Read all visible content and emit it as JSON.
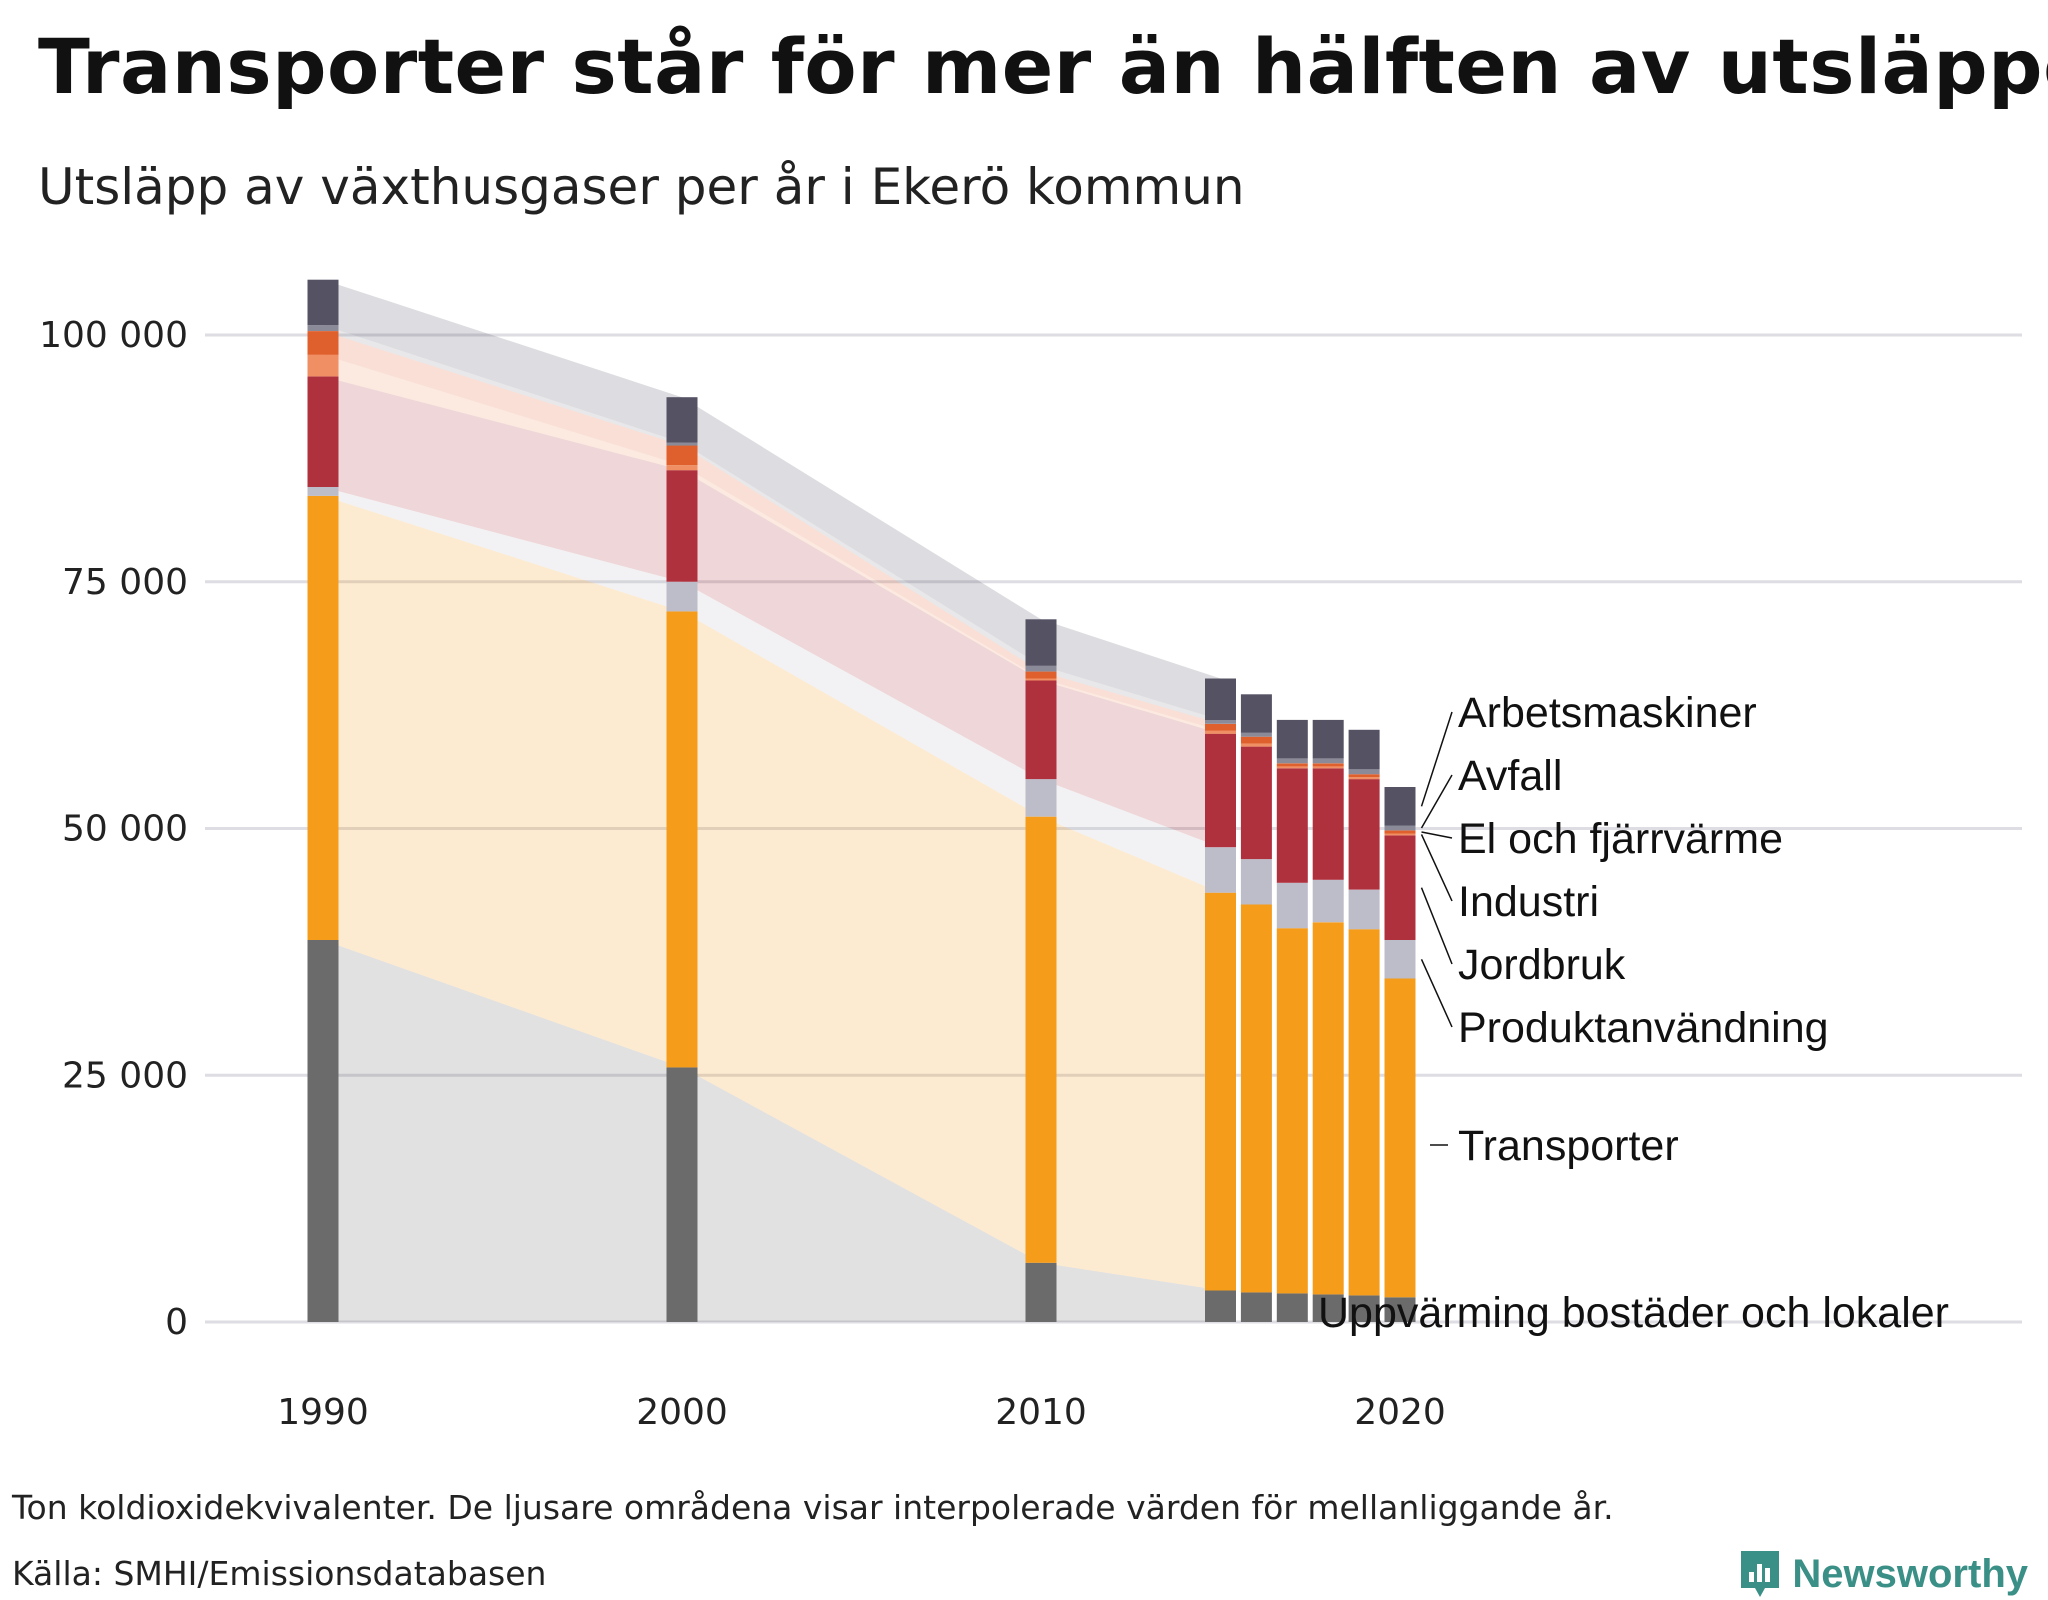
{
  "header": {
    "title": "Transporter står för mer än hälften av utsläppen",
    "subtitle": "Utsläpp av växthusgaser per år i Ekerö kommun"
  },
  "footer": {
    "note": "Ton koldioxidekvivalenter. De ljusare områdena visar interpolerade värden för mellanliggande år.",
    "source": "Källa: SMHI/Emissionsdatabasen",
    "brand": "Newsworthy"
  },
  "colors": {
    "Uppvärming bostäder och lokaler": "#6b6b6b",
    "Transporter": "#f59c1a",
    "Produktanvändning": "#bdbcc9",
    "Jordbruk": "#b0313e",
    "Industri": "#ef8f63",
    "El och fjärrvärme": "#e0602d",
    "Avfall": "#8a8a98",
    "Arbetsmaskiner": "#545263",
    "brand": "#3a8f86",
    "grid": "#dddde3"
  },
  "chart_data": {
    "type": "bar",
    "stacked": true,
    "interpolated_areas": true,
    "x": [
      1990,
      2000,
      2010,
      2015,
      2016,
      2017,
      2018,
      2019,
      2020
    ],
    "xticks": [
      1990,
      2000,
      2010,
      2020
    ],
    "xtick_labels": [
      "1990",
      "2000",
      "2010",
      "2020"
    ],
    "ylim": [
      0,
      105000
    ],
    "yticks": [
      0,
      25000,
      50000,
      75000,
      100000
    ],
    "ytick_labels": [
      "0",
      "25 000",
      "50 000",
      "75 000",
      "100 000"
    ],
    "grid": true,
    "legend": "direct labels at right, stacked top to bottom",
    "series": [
      {
        "name": "Uppvärming bostäder och lokaler",
        "values": [
          38700,
          25800,
          6000,
          3200,
          3000,
          2900,
          2800,
          2700,
          2500
        ]
      },
      {
        "name": "Transporter",
        "values": [
          45000,
          46200,
          45200,
          40300,
          39300,
          37000,
          37700,
          37100,
          32300
        ]
      },
      {
        "name": "Produktanvändning",
        "values": [
          900,
          3000,
          3800,
          4600,
          4600,
          4600,
          4300,
          4000,
          3900
        ]
      },
      {
        "name": "Jordbruk",
        "values": [
          11200,
          11300,
          10000,
          11500,
          11400,
          11600,
          11300,
          11200,
          10600
        ]
      },
      {
        "name": "Industri",
        "values": [
          2200,
          500,
          200,
          300,
          300,
          200,
          200,
          200,
          200
        ]
      },
      {
        "name": "El och fjärrvärme",
        "values": [
          2400,
          2000,
          700,
          700,
          700,
          300,
          300,
          300,
          300
        ]
      },
      {
        "name": "Avfall",
        "values": [
          600,
          300,
          600,
          400,
          400,
          500,
          500,
          500,
          500
        ]
      },
      {
        "name": "Arbetsmaskiner",
        "values": [
          4600,
          4600,
          4700,
          4200,
          3900,
          3900,
          3900,
          4000,
          3900
        ]
      }
    ]
  }
}
